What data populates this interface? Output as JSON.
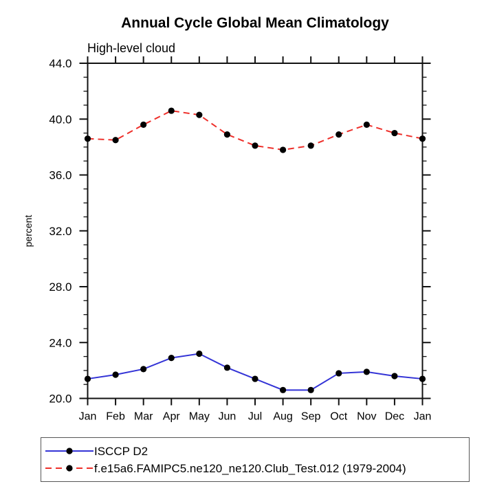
{
  "title": "Annual Cycle Global Mean Climatology",
  "subtitle": "High-level cloud",
  "chart_data": {
    "type": "line",
    "x_categories": [
      "Jan",
      "Feb",
      "Mar",
      "Apr",
      "May",
      "Jun",
      "Jul",
      "Aug",
      "Sep",
      "Oct",
      "Nov",
      "Dec",
      "Jan"
    ],
    "xlabel": "",
    "ylabel": "percent",
    "ylim": [
      20.0,
      44.0
    ],
    "y_major_ticks": [
      20.0,
      24.0,
      28.0,
      32.0,
      36.0,
      40.0,
      44.0
    ],
    "y_minor_step": 1.0,
    "grid": false,
    "legend_position": "bottom-left-box",
    "axis_color": "#111111",
    "marker_color": "#000000",
    "series": [
      {
        "name": "ISCCP D2",
        "color": "#3333d6",
        "style": "solid",
        "marker": "filled-circle",
        "values": [
          21.4,
          21.7,
          22.1,
          22.9,
          23.2,
          22.2,
          21.4,
          20.6,
          20.6,
          21.8,
          21.9,
          21.6,
          21.4
        ]
      },
      {
        "name": "f.e15a6.FAMIPC5.ne120_ne120.Club_Test.012 (1979-2004)",
        "color": "#ee2f2a",
        "style": "dashed",
        "marker": "filled-circle",
        "values": [
          38.6,
          38.5,
          39.6,
          40.6,
          40.3,
          38.9,
          38.1,
          37.8,
          38.1,
          38.9,
          39.6,
          39.0,
          38.6
        ]
      }
    ]
  }
}
